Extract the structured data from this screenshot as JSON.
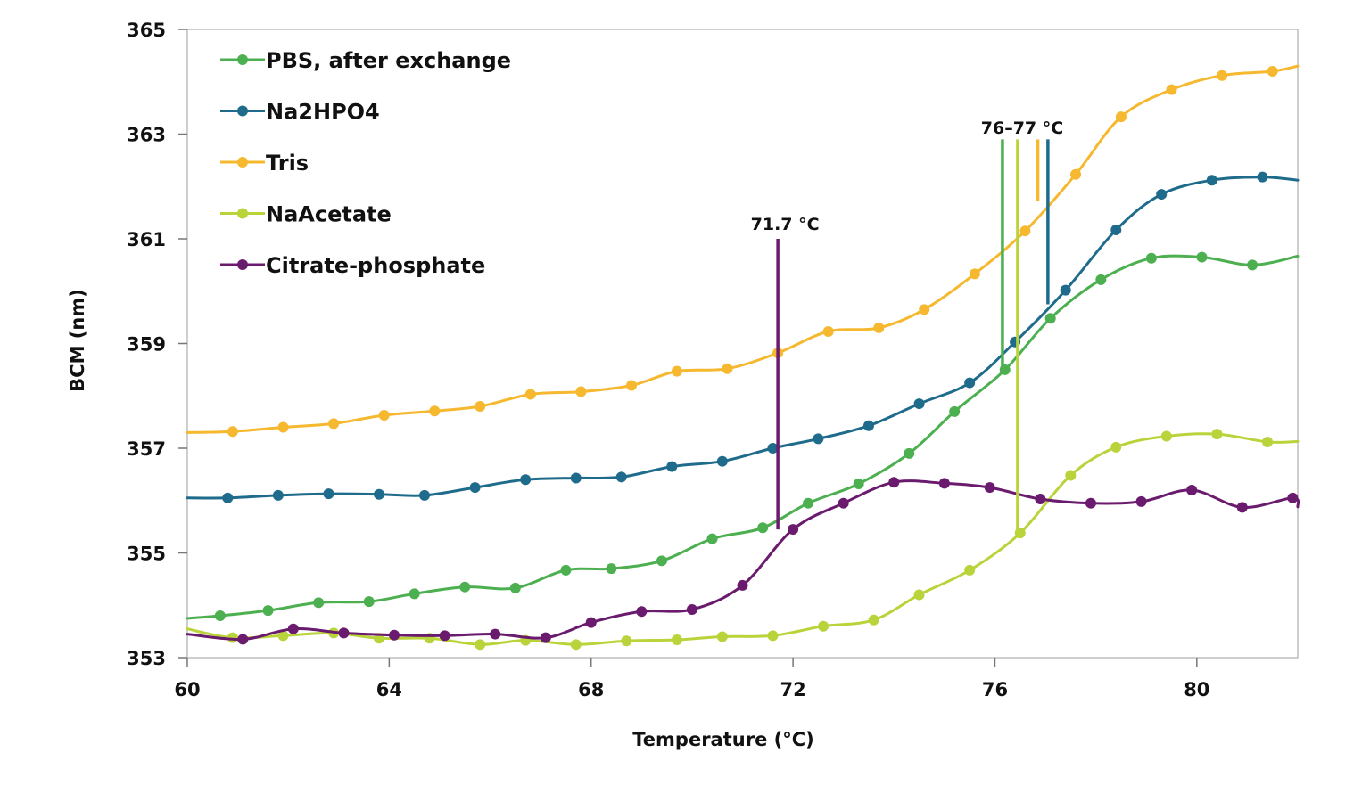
{
  "chart_data": {
    "type": "line",
    "title": "",
    "xlabel": "Temperature (°C)",
    "ylabel": "BCM (nm)",
    "xlim": [
      60,
      82
    ],
    "ylim": [
      353,
      365
    ],
    "x_ticks": [
      "60",
      "64",
      "68",
      "72",
      "76",
      "80"
    ],
    "x_tick_values": [
      60,
      64,
      68,
      72,
      76,
      80
    ],
    "y_ticks": [
      "353",
      "355",
      "357",
      "359",
      "361",
      "363",
      "365"
    ],
    "y_tick_values": [
      353,
      355,
      357,
      359,
      361,
      363,
      365
    ],
    "grid": false,
    "legend_position": "top-left",
    "series": [
      {
        "name": "PBS, after exchange",
        "color": "#4caf50",
        "points": [
          [
            60,
            353.75
          ],
          [
            60.65,
            353.8
          ],
          [
            61.6,
            353.9
          ],
          [
            62.6,
            354.05
          ],
          [
            63.6,
            354.07
          ],
          [
            64.5,
            354.22
          ],
          [
            65.5,
            354.35
          ],
          [
            66.5,
            354.33
          ],
          [
            67.5,
            354.67
          ],
          [
            68.4,
            354.7
          ],
          [
            69.4,
            354.85
          ],
          [
            70.4,
            355.27
          ],
          [
            71.4,
            355.48
          ],
          [
            72.3,
            355.95
          ],
          [
            73.3,
            356.32
          ],
          [
            74.3,
            356.9
          ],
          [
            75.2,
            357.7
          ],
          [
            76.2,
            358.5
          ],
          [
            77.1,
            359.48
          ],
          [
            78.1,
            360.22
          ],
          [
            79.1,
            360.63
          ],
          [
            80.1,
            360.65
          ],
          [
            81.1,
            360.5
          ],
          [
            82,
            360.67
          ]
        ]
      },
      {
        "name": "Na2HPO4",
        "color": "#1f6b8c",
        "points": [
          [
            60,
            356.05
          ],
          [
            60.8,
            356.05
          ],
          [
            61.8,
            356.1
          ],
          [
            62.8,
            356.13
          ],
          [
            63.8,
            356.12
          ],
          [
            64.7,
            356.1
          ],
          [
            65.7,
            356.25
          ],
          [
            66.7,
            356.4
          ],
          [
            67.7,
            356.43
          ],
          [
            68.6,
            356.45
          ],
          [
            69.6,
            356.65
          ],
          [
            70.6,
            356.75
          ],
          [
            71.6,
            357.0
          ],
          [
            72.5,
            357.18
          ],
          [
            73.5,
            357.43
          ],
          [
            74.5,
            357.85
          ],
          [
            75.5,
            358.25
          ],
          [
            76.4,
            359.03
          ],
          [
            77.4,
            360.02
          ],
          [
            78.4,
            361.17
          ],
          [
            79.3,
            361.85
          ],
          [
            80.3,
            362.12
          ],
          [
            81.3,
            362.18
          ],
          [
            82,
            362.12
          ]
        ]
      },
      {
        "name": "Tris",
        "color": "#f5b82e",
        "points": [
          [
            60,
            357.3
          ],
          [
            60.9,
            357.32
          ],
          [
            61.9,
            357.4
          ],
          [
            62.9,
            357.47
          ],
          [
            63.9,
            357.63
          ],
          [
            64.9,
            357.71
          ],
          [
            65.8,
            357.8
          ],
          [
            66.8,
            358.03
          ],
          [
            67.8,
            358.08
          ],
          [
            68.8,
            358.2
          ],
          [
            69.7,
            358.47
          ],
          [
            70.7,
            358.52
          ],
          [
            71.7,
            358.82
          ],
          [
            72.7,
            359.23
          ],
          [
            73.7,
            359.3
          ],
          [
            74.6,
            359.65
          ],
          [
            75.6,
            360.33
          ],
          [
            76.6,
            361.15
          ],
          [
            77.6,
            362.23
          ],
          [
            78.5,
            363.33
          ],
          [
            79.5,
            363.85
          ],
          [
            80.5,
            364.12
          ],
          [
            81.5,
            364.2
          ],
          [
            82,
            364.3
          ]
        ]
      },
      {
        "name": "NaAcetate",
        "color": "#b9d43b",
        "points": [
          [
            60,
            353.55
          ],
          [
            60.9,
            353.38
          ],
          [
            61.9,
            353.42
          ],
          [
            62.9,
            353.47
          ],
          [
            63.8,
            353.37
          ],
          [
            64.8,
            353.37
          ],
          [
            65.8,
            353.25
          ],
          [
            66.7,
            353.33
          ],
          [
            67.7,
            353.25
          ],
          [
            68.7,
            353.32
          ],
          [
            69.7,
            353.34
          ],
          [
            70.6,
            353.4
          ],
          [
            71.6,
            353.42
          ],
          [
            72.6,
            353.6
          ],
          [
            73.6,
            353.72
          ],
          [
            74.5,
            354.2
          ],
          [
            75.5,
            354.67
          ],
          [
            76.5,
            355.38
          ],
          [
            77.5,
            356.48
          ],
          [
            78.4,
            357.02
          ],
          [
            79.4,
            357.23
          ],
          [
            80.4,
            357.27
          ],
          [
            81.4,
            357.12
          ],
          [
            82,
            357.13
          ]
        ]
      },
      {
        "name": "Citrate-phosphate",
        "color": "#6a1b6e",
        "points": [
          [
            60,
            353.45
          ],
          [
            61.1,
            353.35
          ],
          [
            62.1,
            353.55
          ],
          [
            63.1,
            353.47
          ],
          [
            64.1,
            353.43
          ],
          [
            65.1,
            353.42
          ],
          [
            66.1,
            353.45
          ],
          [
            67.1,
            353.38
          ],
          [
            68.0,
            353.67
          ],
          [
            69.0,
            353.88
          ],
          [
            70.0,
            353.92
          ],
          [
            71.0,
            354.38
          ],
          [
            72.0,
            355.45
          ],
          [
            73.0,
            355.95
          ],
          [
            74.0,
            356.35
          ],
          [
            75.0,
            356.33
          ],
          [
            75.9,
            356.25
          ],
          [
            76.9,
            356.03
          ],
          [
            77.9,
            355.95
          ],
          [
            78.9,
            355.98
          ],
          [
            79.9,
            356.2
          ],
          [
            80.9,
            355.87
          ],
          [
            81.9,
            356.05
          ],
          [
            82,
            355.88
          ]
        ]
      }
    ],
    "annotations": [
      {
        "label": "71.7 °C",
        "x": 71.7,
        "color": "#6a1b6e",
        "y_top": 361.0,
        "y_bottom": 355.45
      },
      {
        "label": "76–77 °C",
        "lines": [
          {
            "x": 76.15,
            "color": "#4caf50",
            "y_top": 362.9,
            "y_bottom": 358.5
          },
          {
            "x": 76.45,
            "color": "#b9d43b",
            "y_top": 362.9,
            "y_bottom": 355.38
          },
          {
            "x": 76.85,
            "color": "#f5b82e",
            "y_top": 362.9,
            "y_bottom": 361.72
          },
          {
            "x": 77.05,
            "color": "#1f6b8c",
            "y_top": 362.9,
            "y_bottom": 359.75
          }
        ]
      }
    ]
  }
}
